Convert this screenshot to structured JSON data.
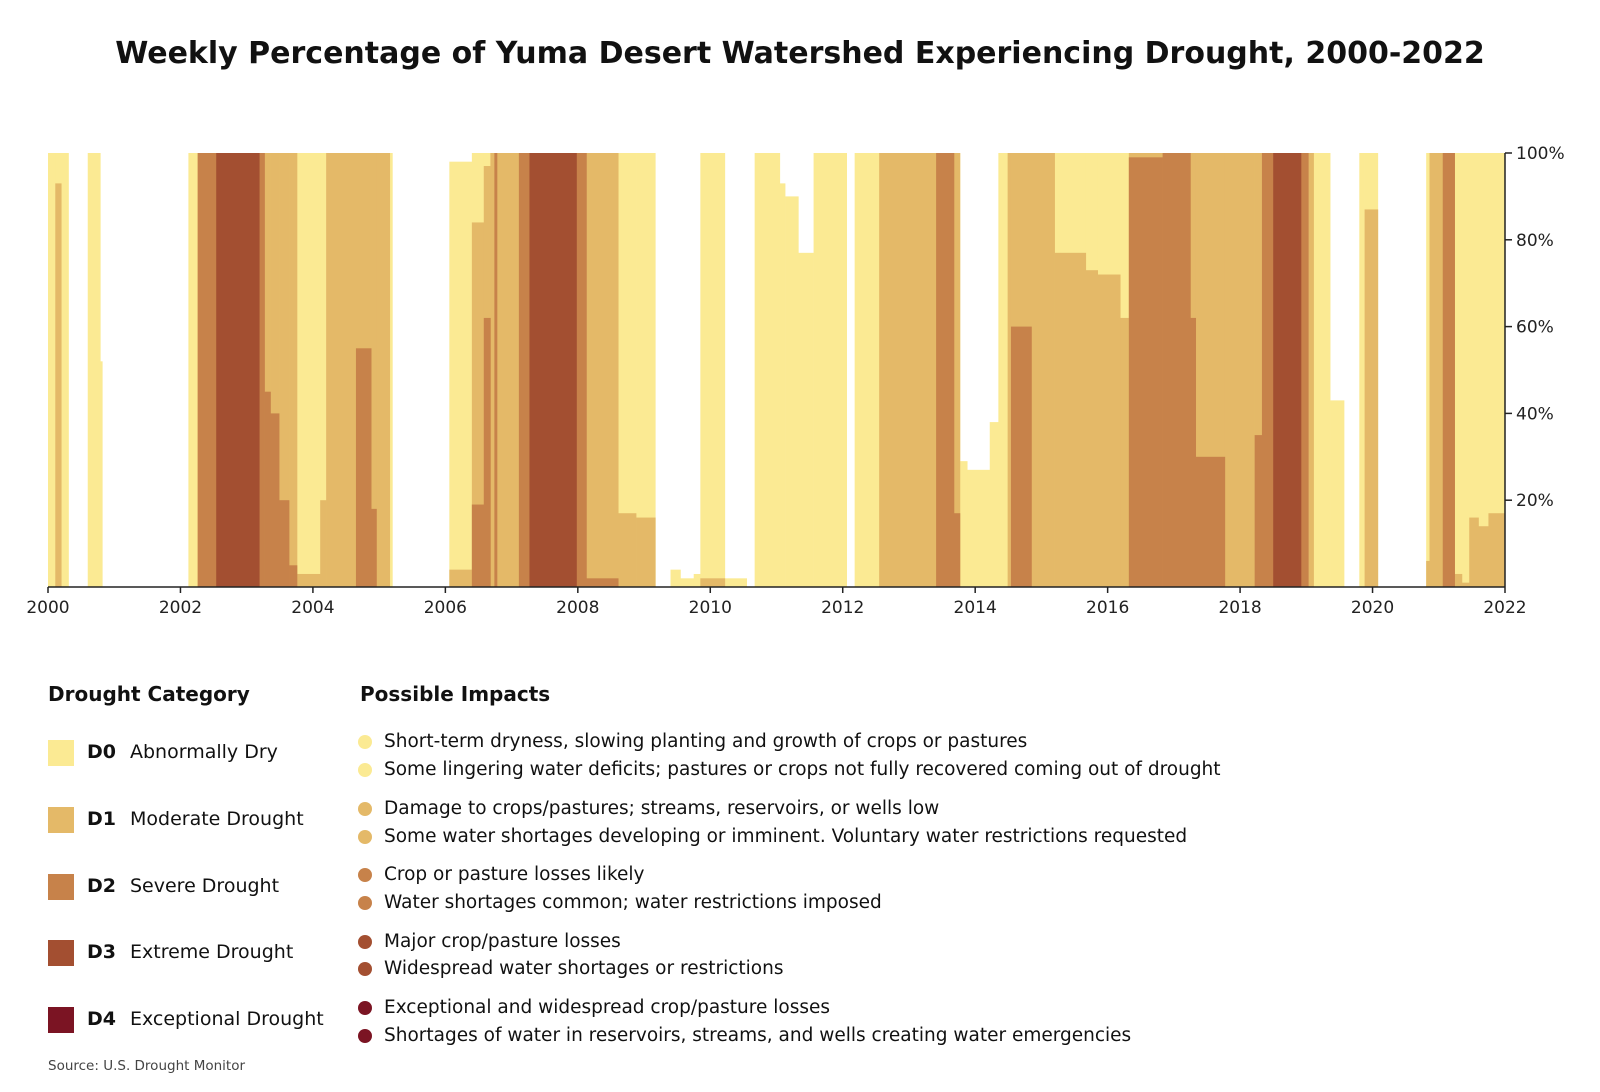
{
  "chart_data": {
    "type": "area",
    "title": "Weekly Percentage of Yuma Desert Watershed Experiencing Drought, 2000-2022",
    "xlim": [
      2000,
      2022
    ],
    "ylim": [
      0,
      100
    ],
    "x_ticks": [
      "2000",
      "2002",
      "2004",
      "2006",
      "2008",
      "2010",
      "2012",
      "2014",
      "2016",
      "2018",
      "2020",
      "2022"
    ],
    "y_ticks": [
      "20%",
      "40%",
      "60%",
      "80%",
      "100%"
    ],
    "y_axis_side": "right",
    "stacking": "cumulative percent of area in category or worse (D0-D4, D1-D4, D2-D4, D3-D4, D4)",
    "segment_columns": [
      "start_year",
      "end_year",
      "D0",
      "D1",
      "D2",
      "D3",
      "D4"
    ],
    "segments": [
      [
        2000.0,
        2000.11,
        100,
        0,
        0,
        0,
        0
      ],
      [
        2000.11,
        2000.2,
        100,
        93,
        0,
        0,
        0
      ],
      [
        2000.2,
        2000.31,
        100,
        0,
        0,
        0,
        0
      ],
      [
        2000.6,
        2000.79,
        100,
        0,
        0,
        0,
        0
      ],
      [
        2000.79,
        2000.82,
        52,
        0,
        0,
        0,
        0
      ],
      [
        2002.12,
        2002.26,
        100,
        0,
        0,
        0,
        0
      ],
      [
        2002.26,
        2002.54,
        100,
        100,
        100,
        0,
        0
      ],
      [
        2002.54,
        2003.19,
        100,
        100,
        100,
        100,
        0
      ],
      [
        2003.19,
        2003.27,
        100,
        100,
        100,
        0,
        0
      ],
      [
        2003.27,
        2003.36,
        100,
        100,
        45,
        0,
        0
      ],
      [
        2003.36,
        2003.49,
        100,
        100,
        40,
        0,
        0
      ],
      [
        2003.49,
        2003.64,
        100,
        100,
        20,
        0,
        0
      ],
      [
        2003.64,
        2003.76,
        100,
        100,
        5,
        0,
        0
      ],
      [
        2003.76,
        2004.11,
        100,
        3,
        0,
        0,
        0
      ],
      [
        2004.11,
        2004.2,
        100,
        20,
        0,
        0,
        0
      ],
      [
        2004.2,
        2004.65,
        100,
        100,
        0,
        0,
        0
      ],
      [
        2004.65,
        2004.88,
        100,
        100,
        55,
        0,
        0
      ],
      [
        2004.88,
        2004.96,
        100,
        100,
        18,
        0,
        0
      ],
      [
        2004.96,
        2005.16,
        100,
        100,
        0,
        0,
        0
      ],
      [
        2005.16,
        2005.2,
        100,
        0,
        0,
        0,
        0
      ],
      [
        2006.06,
        2006.4,
        98,
        4,
        0,
        0,
        0
      ],
      [
        2006.4,
        2006.58,
        100,
        84,
        19,
        0,
        0
      ],
      [
        2006.58,
        2006.68,
        100,
        97,
        62,
        0,
        0
      ],
      [
        2006.68,
        2006.74,
        100,
        100,
        0,
        0,
        0
      ],
      [
        2006.74,
        2006.78,
        100,
        100,
        100,
        0,
        0
      ],
      [
        2006.78,
        2007.11,
        100,
        100,
        0,
        0,
        0
      ],
      [
        2007.11,
        2007.27,
        100,
        100,
        100,
        0,
        0
      ],
      [
        2007.27,
        2007.98,
        100,
        100,
        100,
        100,
        0
      ],
      [
        2007.98,
        2008.13,
        100,
        100,
        100,
        0,
        0
      ],
      [
        2008.13,
        2008.61,
        100,
        100,
        2,
        0,
        0
      ],
      [
        2008.61,
        2008.88,
        100,
        17,
        0,
        0,
        0
      ],
      [
        2008.88,
        2009.17,
        100,
        16,
        0,
        0,
        0
      ],
      [
        2009.4,
        2009.55,
        4,
        0,
        0,
        0,
        0
      ],
      [
        2009.55,
        2009.75,
        2,
        0,
        0,
        0,
        0
      ],
      [
        2009.75,
        2009.85,
        3,
        0,
        0,
        0,
        0
      ],
      [
        2009.85,
        2010.22,
        100,
        2,
        0,
        0,
        0
      ],
      [
        2010.22,
        2010.55,
        2,
        0,
        0,
        0,
        0
      ],
      [
        2010.67,
        2011.05,
        100,
        0,
        0,
        0,
        0
      ],
      [
        2011.05,
        2011.13,
        93,
        0,
        0,
        0,
        0
      ],
      [
        2011.13,
        2011.33,
        90,
        0,
        0,
        0,
        0
      ],
      [
        2011.33,
        2011.56,
        77,
        0,
        0,
        0,
        0
      ],
      [
        2011.56,
        2012.06,
        100,
        0,
        0,
        0,
        0
      ],
      [
        2012.18,
        2012.55,
        100,
        0,
        0,
        0,
        0
      ],
      [
        2012.55,
        2013.41,
        100,
        100,
        0,
        0,
        0
      ],
      [
        2013.41,
        2013.68,
        100,
        100,
        100,
        0,
        0
      ],
      [
        2013.68,
        2013.77,
        100,
        100,
        17,
        0,
        0
      ],
      [
        2013.77,
        2013.88,
        29,
        0,
        0,
        0,
        0
      ],
      [
        2013.88,
        2014.22,
        27,
        0,
        0,
        0,
        0
      ],
      [
        2014.22,
        2014.35,
        38,
        0,
        0,
        0,
        0
      ],
      [
        2014.35,
        2014.49,
        100,
        0,
        0,
        0,
        0
      ],
      [
        2014.49,
        2014.54,
        100,
        100,
        0,
        0,
        0
      ],
      [
        2014.54,
        2014.85,
        100,
        100,
        60,
        0,
        0
      ],
      [
        2014.85,
        2015.2,
        100,
        100,
        0,
        0,
        0
      ],
      [
        2015.2,
        2015.28,
        100,
        77,
        0,
        0,
        0
      ],
      [
        2015.28,
        2015.67,
        100,
        77,
        0,
        0,
        0
      ],
      [
        2015.67,
        2015.85,
        100,
        73,
        0,
        0,
        0
      ],
      [
        2015.85,
        2016.19,
        100,
        72,
        0,
        0,
        0
      ],
      [
        2016.19,
        2016.32,
        100,
        62,
        0,
        0,
        0
      ],
      [
        2016.32,
        2016.83,
        100,
        100,
        99,
        0,
        0
      ],
      [
        2016.83,
        2017.25,
        100,
        100,
        100,
        0,
        0
      ],
      [
        2017.25,
        2017.33,
        100,
        100,
        62,
        0,
        0
      ],
      [
        2017.33,
        2017.77,
        100,
        100,
        30,
        0,
        0
      ],
      [
        2017.77,
        2018.22,
        100,
        100,
        0,
        0,
        0
      ],
      [
        2018.22,
        2018.33,
        100,
        100,
        35,
        0,
        0
      ],
      [
        2018.33,
        2018.5,
        100,
        100,
        100,
        0,
        0
      ],
      [
        2018.5,
        2018.92,
        100,
        100,
        100,
        100,
        0
      ],
      [
        2018.92,
        2019.03,
        100,
        100,
        100,
        0,
        0
      ],
      [
        2019.03,
        2019.11,
        100,
        100,
        0,
        0,
        0
      ],
      [
        2019.11,
        2019.36,
        100,
        0,
        0,
        0,
        0
      ],
      [
        2019.36,
        2019.57,
        43,
        0,
        0,
        0,
        0
      ],
      [
        2019.8,
        2019.88,
        100,
        0,
        0,
        0,
        0
      ],
      [
        2019.88,
        2020.08,
        100,
        87,
        0,
        0,
        0
      ],
      [
        2020.81,
        2020.86,
        100,
        6,
        0,
        0,
        0
      ],
      [
        2020.86,
        2021.06,
        100,
        100,
        0,
        0,
        0
      ],
      [
        2021.06,
        2021.24,
        100,
        100,
        100,
        0,
        0
      ],
      [
        2021.24,
        2021.35,
        100,
        3,
        0,
        0,
        0
      ],
      [
        2021.35,
        2021.46,
        100,
        1,
        0,
        0,
        0
      ],
      [
        2021.46,
        2021.6,
        100,
        16,
        0,
        0,
        0
      ],
      [
        2021.6,
        2021.75,
        100,
        14,
        0,
        0,
        0
      ],
      [
        2021.75,
        2022.0,
        100,
        17,
        0,
        0,
        0
      ]
    ],
    "colors": {
      "D0": "#fbea93",
      "D1": "#e4b968",
      "D2": "#c7824a",
      "D3": "#a34f31",
      "D4": "#7b1423"
    }
  },
  "legend": {
    "category_heading": "Drought Category",
    "impacts_heading": "Possible Impacts",
    "items": [
      {
        "code": "D0",
        "name": "Abnormally Dry",
        "color": "#fbea93",
        "impacts": [
          "Short-term dryness, slowing planting and growth of crops or pastures",
          "Some lingering water deficits; pastures or crops not fully recovered coming out of drought"
        ]
      },
      {
        "code": "D1",
        "name": "Moderate Drought",
        "color": "#e4b968",
        "impacts": [
          "Damage to crops/pastures; streams, reservoirs, or wells low",
          "Some water shortages developing or imminent. Voluntary water restrictions requested"
        ]
      },
      {
        "code": "D2",
        "name": "Severe Drought",
        "color": "#c7824a",
        "impacts": [
          "Crop or pasture losses likely",
          "Water shortages common; water restrictions imposed"
        ]
      },
      {
        "code": "D3",
        "name": "Extreme Drought",
        "color": "#a34f31",
        "impacts": [
          "Major crop/pasture losses",
          "Widespread water shortages or restrictions"
        ]
      },
      {
        "code": "D4",
        "name": "Exceptional Drought",
        "color": "#7b1423",
        "impacts": [
          "Exceptional and widespread crop/pasture losses",
          "Shortages of water in reservoirs, streams, and wells creating water emergencies"
        ]
      }
    ]
  },
  "source": "Source: U.S. Drought Monitor"
}
